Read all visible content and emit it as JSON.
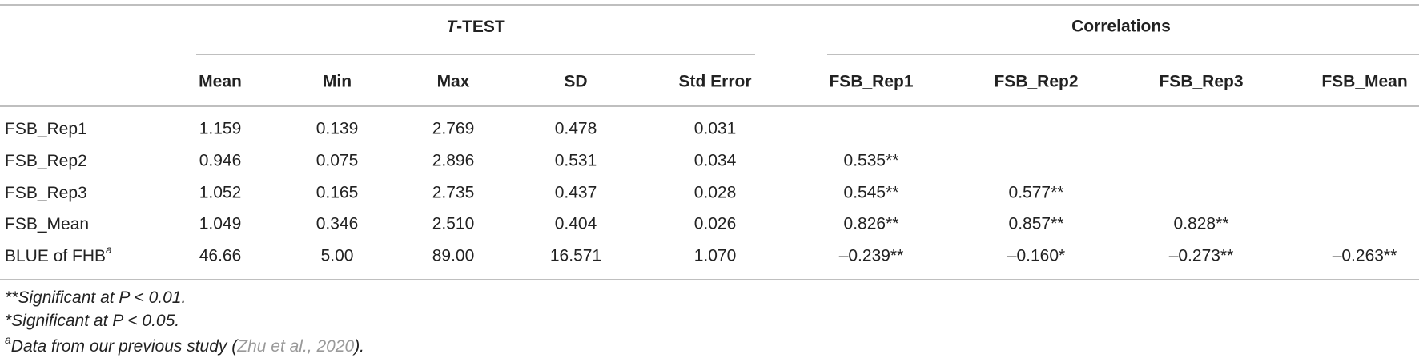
{
  "table": {
    "group_headers": [
      {
        "italic": "T",
        "rest": "-TEST"
      },
      {
        "text": "Correlations"
      }
    ],
    "columns": [
      "Mean",
      "Min",
      "Max",
      "SD",
      "Std Error",
      "FSB_Rep1",
      "FSB_Rep2",
      "FSB_Rep3",
      "FSB_Mean"
    ],
    "rows": [
      {
        "label": "FSB_Rep1",
        "cells": [
          "1.159",
          "0.139",
          "2.769",
          "0.478",
          "0.031",
          null,
          null,
          null,
          null
        ]
      },
      {
        "label": "FSB_Rep2",
        "cells": [
          "0.946",
          "0.075",
          "2.896",
          "0.531",
          "0.034",
          "0.535**",
          null,
          null,
          null
        ]
      },
      {
        "label": "FSB_Rep3",
        "cells": [
          "1.052",
          "0.165",
          "2.735",
          "0.437",
          "0.028",
          "0.545**",
          "0.577**",
          null,
          null
        ]
      },
      {
        "label": "FSB_Mean",
        "cells": [
          "1.049",
          "0.346",
          "2.510",
          "0.404",
          "0.026",
          "0.826**",
          "0.857**",
          "0.828**",
          null
        ]
      },
      {
        "label": "BLUE of FHB",
        "label_sup": "a",
        "cells": [
          "46.66",
          "5.00",
          "89.00",
          "16.571",
          "1.070",
          "–0.239**",
          "–0.160*",
          "–0.273**",
          "–0.263**"
        ]
      }
    ]
  },
  "footnotes": [
    {
      "text": "**Significant at P < 0.01."
    },
    {
      "text": "*Significant at P < 0.05."
    },
    {
      "sup": "a",
      "text": "Data from our previous study (",
      "link": "Zhu et al., 2020",
      "end": ")."
    }
  ]
}
